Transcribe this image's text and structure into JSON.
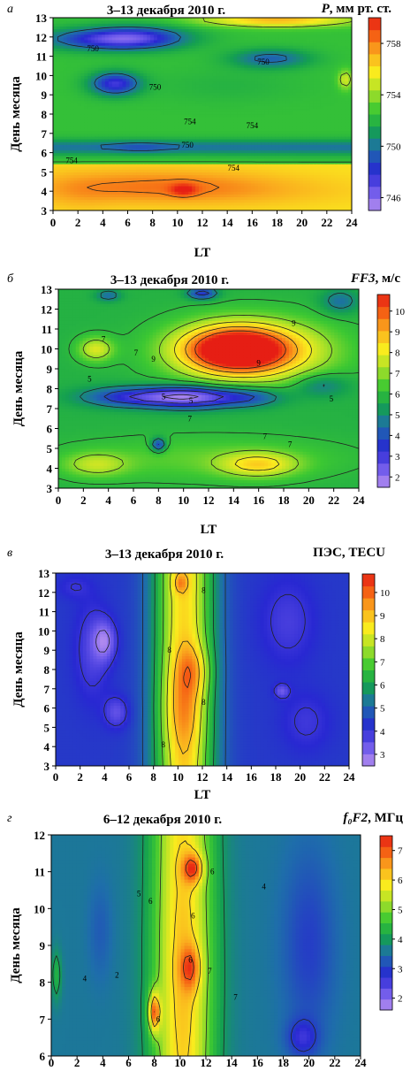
{
  "chart_data": [
    {
      "type": "heatmap",
      "panel_label": "а",
      "title": "3–13 декабря 2010 г.",
      "colorbar_label_var": "P",
      "colorbar_label_units": ", мм рт. ст.",
      "xlabel": "LT",
      "ylabel": "День месяца",
      "xlim": [
        0,
        24
      ],
      "ylim": [
        3,
        13
      ],
      "xticks": [
        0,
        2,
        4,
        6,
        8,
        10,
        12,
        14,
        16,
        18,
        20,
        22,
        24
      ],
      "yticks": [
        3,
        4,
        5,
        6,
        7,
        8,
        9,
        10,
        11,
        12,
        13
      ],
      "colorbar_ticks": [
        746,
        750,
        754,
        758
      ],
      "colorbar_range": [
        745,
        760
      ],
      "contour_labels": [
        "750",
        "750",
        "750",
        "750",
        "754",
        "754",
        "754",
        "754"
      ]
    },
    {
      "type": "heatmap",
      "panel_label": "б",
      "title": "3–13 декабря 2010 г.",
      "colorbar_label_var": "FF3",
      "colorbar_label_units": ", м/с",
      "xlabel": "LT",
      "ylabel": "День месяца",
      "xlim": [
        0,
        24
      ],
      "ylim": [
        3,
        13
      ],
      "xticks": [
        0,
        2,
        4,
        6,
        8,
        10,
        12,
        14,
        16,
        18,
        20,
        22,
        24
      ],
      "yticks": [
        3,
        4,
        5,
        6,
        7,
        8,
        9,
        10,
        11,
        12,
        13
      ],
      "colorbar_ticks": [
        2,
        3,
        4,
        5,
        6,
        7,
        8,
        9,
        10
      ],
      "colorbar_range": [
        1.5,
        10.8
      ],
      "contour_labels": [
        "7",
        "7",
        "9",
        "9",
        "9",
        "5",
        "5",
        "5",
        "5",
        "7",
        "7",
        "7"
      ]
    },
    {
      "type": "heatmap",
      "panel_label": "в",
      "title": "3–13 декабря 2010 г.",
      "colorbar_label_var": "",
      "colorbar_label_units": "ПЭС, TECU",
      "xlabel": "LT",
      "ylabel": "День месяца",
      "xlim": [
        0,
        24
      ],
      "ylim": [
        3,
        13
      ],
      "xticks": [
        0,
        2,
        4,
        6,
        8,
        10,
        12,
        14,
        16,
        18,
        20,
        22,
        24
      ],
      "yticks": [
        3,
        4,
        5,
        6,
        7,
        8,
        9,
        10,
        11,
        12,
        13
      ],
      "colorbar_ticks": [
        3,
        4,
        5,
        6,
        7,
        8,
        9,
        10
      ],
      "colorbar_range": [
        2.5,
        10.8
      ],
      "contour_labels": [
        "8",
        "8",
        "8",
        "8"
      ]
    },
    {
      "type": "heatmap",
      "panel_label": "г",
      "title": "6–12 декабря 2010 г.",
      "colorbar_label_var": "f₀F2",
      "colorbar_label_units": ", МГц",
      "xlabel": "",
      "ylabel": "День месяца",
      "xlim": [
        0,
        24
      ],
      "ylim": [
        6,
        12
      ],
      "xticks": [
        0,
        2,
        4,
        6,
        8,
        10,
        12,
        14,
        16,
        18,
        20,
        22,
        24
      ],
      "yticks": [
        6,
        7,
        8,
        9,
        10,
        11,
        12
      ],
      "colorbar_ticks": [
        2,
        3,
        4,
        5,
        6,
        7
      ],
      "colorbar_range": [
        1.6,
        7.5
      ],
      "contour_labels": [
        "5",
        "6",
        "6",
        "6",
        "6",
        "6",
        "4",
        "4",
        "2",
        "7",
        "7"
      ]
    }
  ]
}
